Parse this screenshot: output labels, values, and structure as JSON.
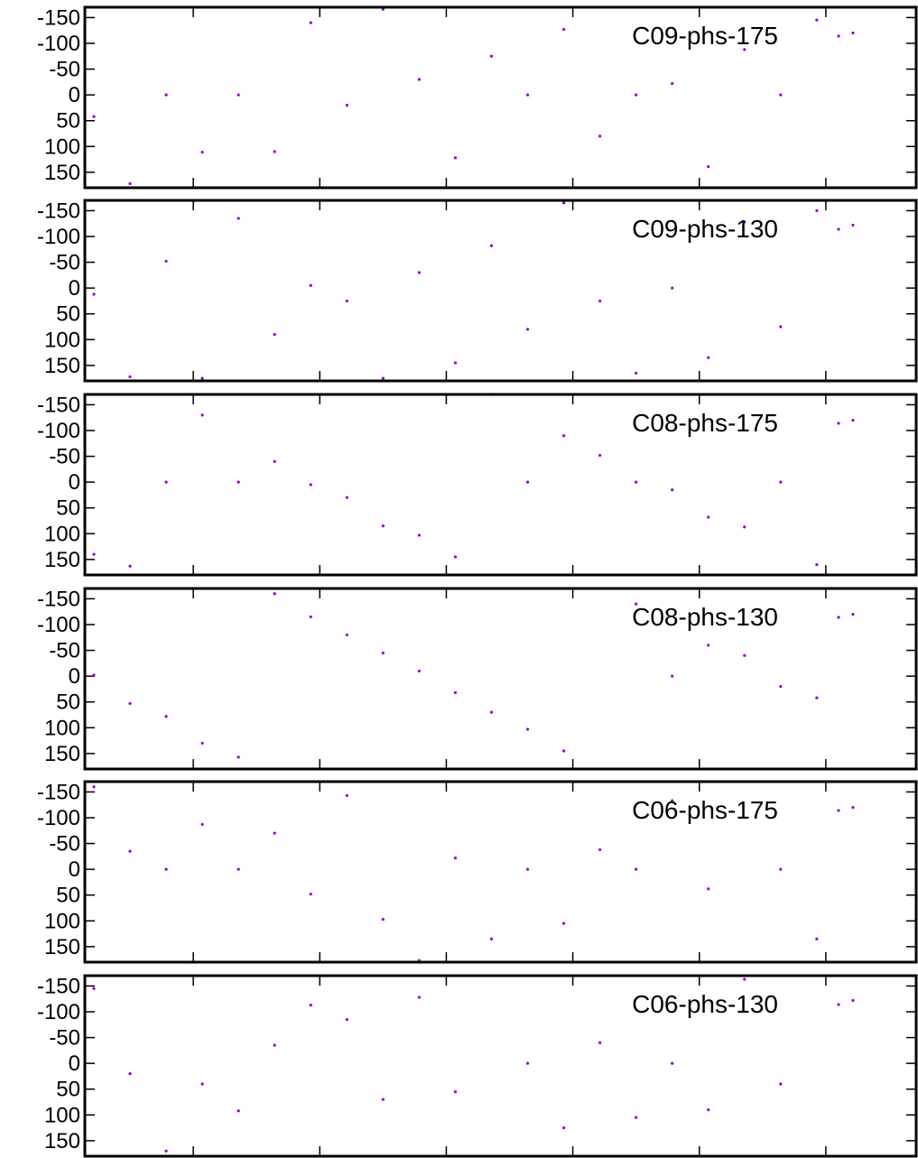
{
  "chart_data": [
    {
      "type": "scatter",
      "title": "",
      "xlabel": "",
      "ylabel": "",
      "y_reversed": true,
      "ylim": [
        -170,
        180
      ],
      "xlim": [
        0,
        23
      ],
      "grid": false,
      "legend_position": "top-right",
      "y_ticks": [
        -150,
        -100,
        -50,
        0,
        50,
        100,
        150
      ],
      "x_ticks": [
        3,
        6.5,
        10,
        13.5,
        17,
        20.5
      ],
      "legend": "C09-phs-175",
      "color": "#9400d3",
      "x": [
        0.25,
        1.25,
        2.25,
        3.25,
        4.25,
        5.25,
        6.25,
        7.25,
        8.25,
        9.25,
        10.25,
        11.25,
        12.25,
        13.25,
        14.25,
        15.25,
        16.25,
        17.25,
        18.25,
        19.25,
        20.25,
        21.25
      ],
      "y": [
        42,
        172,
        0,
        111,
        0,
        110,
        -140,
        20,
        -166,
        -30,
        122,
        -75,
        0,
        -127,
        80,
        0,
        -22,
        139,
        -88,
        0,
        -145,
        -120
      ]
    },
    {
      "type": "scatter",
      "title": "",
      "xlabel": "",
      "ylabel": "",
      "y_reversed": true,
      "ylim": [
        -170,
        180
      ],
      "xlim": [
        0,
        23
      ],
      "grid": false,
      "legend_position": "top-right",
      "y_ticks": [
        -150,
        -100,
        -50,
        0,
        50,
        100,
        150
      ],
      "x_ticks": [
        3,
        6.5,
        10,
        13.5,
        17,
        20.5
      ],
      "legend": "C09-phs-130",
      "color": "#9400d3",
      "x": [
        0.25,
        1.25,
        2.25,
        3.25,
        4.25,
        5.25,
        6.25,
        7.25,
        8.25,
        9.25,
        10.25,
        11.25,
        12.25,
        13.25,
        14.25,
        15.25,
        16.25,
        17.25,
        18.25,
        19.25,
        20.25,
        21.25
      ],
      "y": [
        12,
        172,
        -52,
        175,
        -135,
        90,
        -5,
        25,
        175,
        -30,
        145,
        -82,
        80,
        -165,
        25,
        165,
        0,
        135,
        -128,
        75,
        -150,
        -122
      ]
    },
    {
      "type": "scatter",
      "title": "",
      "xlabel": "",
      "ylabel": "",
      "y_reversed": true,
      "ylim": [
        -170,
        180
      ],
      "xlim": [
        0,
        23
      ],
      "grid": false,
      "legend_position": "top-right",
      "y_ticks": [
        -150,
        -100,
        -50,
        0,
        50,
        100,
        150
      ],
      "x_ticks": [
        3,
        6.5,
        10,
        13.5,
        17,
        20.5
      ],
      "legend": "C08-phs-175",
      "color": "#9400d3",
      "x": [
        0.25,
        1.25,
        2.25,
        3.25,
        4.25,
        5.25,
        6.25,
        7.25,
        8.25,
        9.25,
        10.25,
        11.25,
        12.25,
        13.25,
        14.25,
        15.25,
        16.25,
        17.25,
        18.25,
        19.25,
        20.25,
        21.25
      ],
      "y": [
        140,
        163,
        0,
        -130,
        0,
        -40,
        5,
        30,
        85,
        103,
        145,
        -170,
        0,
        -90,
        -52,
        0,
        15,
        68,
        87,
        0,
        160,
        -120
      ]
    },
    {
      "type": "scatter",
      "title": "",
      "xlabel": "",
      "ylabel": "",
      "y_reversed": true,
      "ylim": [
        -170,
        180
      ],
      "xlim": [
        0,
        23
      ],
      "grid": false,
      "legend_position": "top-right",
      "y_ticks": [
        -150,
        -100,
        -50,
        0,
        50,
        100,
        150
      ],
      "x_ticks": [
        3,
        6.5,
        10,
        13.5,
        17,
        20.5
      ],
      "legend": "C08-phs-130",
      "color": "#9400d3",
      "x": [
        0.25,
        1.25,
        2.25,
        3.25,
        4.25,
        5.25,
        6.25,
        7.25,
        8.25,
        9.25,
        10.25,
        11.25,
        12.25,
        13.25,
        14.25,
        15.25,
        16.25,
        17.25,
        18.25,
        19.25,
        20.25,
        21.25
      ],
      "y": [
        -2,
        53,
        78,
        130,
        157,
        -160,
        -115,
        -80,
        -45,
        -10,
        32,
        70,
        103,
        145,
        -178,
        -140,
        0,
        -60,
        -40,
        20,
        42,
        -120
      ]
    },
    {
      "type": "scatter",
      "title": "",
      "xlabel": "",
      "ylabel": "",
      "y_reversed": true,
      "ylim": [
        -170,
        180
      ],
      "xlim": [
        0,
        23
      ],
      "grid": false,
      "legend_position": "top-right",
      "y_ticks": [
        -150,
        -100,
        -50,
        0,
        50,
        100,
        150
      ],
      "x_ticks": [
        3,
        6.5,
        10,
        13.5,
        17,
        20.5
      ],
      "legend": "C06-phs-175",
      "color": "#9400d3",
      "x": [
        0.25,
        1.25,
        2.25,
        3.25,
        4.25,
        5.25,
        6.25,
        7.25,
        8.25,
        9.25,
        10.25,
        11.25,
        12.25,
        13.25,
        14.25,
        15.25,
        16.25,
        17.25,
        18.25,
        19.25,
        20.25,
        21.25
      ],
      "y": [
        -160,
        -35,
        0,
        -87,
        0,
        -70,
        48,
        -143,
        97,
        177,
        -22,
        135,
        0,
        105,
        -38,
        0,
        -133,
        38,
        -178,
        0,
        135,
        -120
      ]
    },
    {
      "type": "scatter",
      "title": "",
      "xlabel": "",
      "ylabel": "",
      "y_reversed": true,
      "ylim": [
        -170,
        180
      ],
      "xlim": [
        0,
        23
      ],
      "grid": false,
      "legend_position": "top-right",
      "y_ticks": [
        -150,
        -100,
        -50,
        0,
        50,
        100,
        150
      ],
      "x_ticks": [
        3,
        6.5,
        10,
        13.5,
        17,
        20.5
      ],
      "legend": "C06-phs-130",
      "color": "#9400d3",
      "x": [
        0.25,
        1.25,
        2.25,
        3.25,
        4.25,
        5.25,
        6.25,
        7.25,
        8.25,
        9.25,
        10.25,
        11.25,
        12.25,
        13.25,
        14.25,
        15.25,
        16.25,
        17.25,
        18.25,
        19.25,
        20.25,
        21.25
      ],
      "y": [
        -145,
        20,
        170,
        40,
        92,
        -35,
        -113,
        -85,
        70,
        -128,
        55,
        -180,
        0,
        125,
        -40,
        105,
        0,
        90,
        -163,
        40,
        -173,
        -122
      ]
    }
  ]
}
